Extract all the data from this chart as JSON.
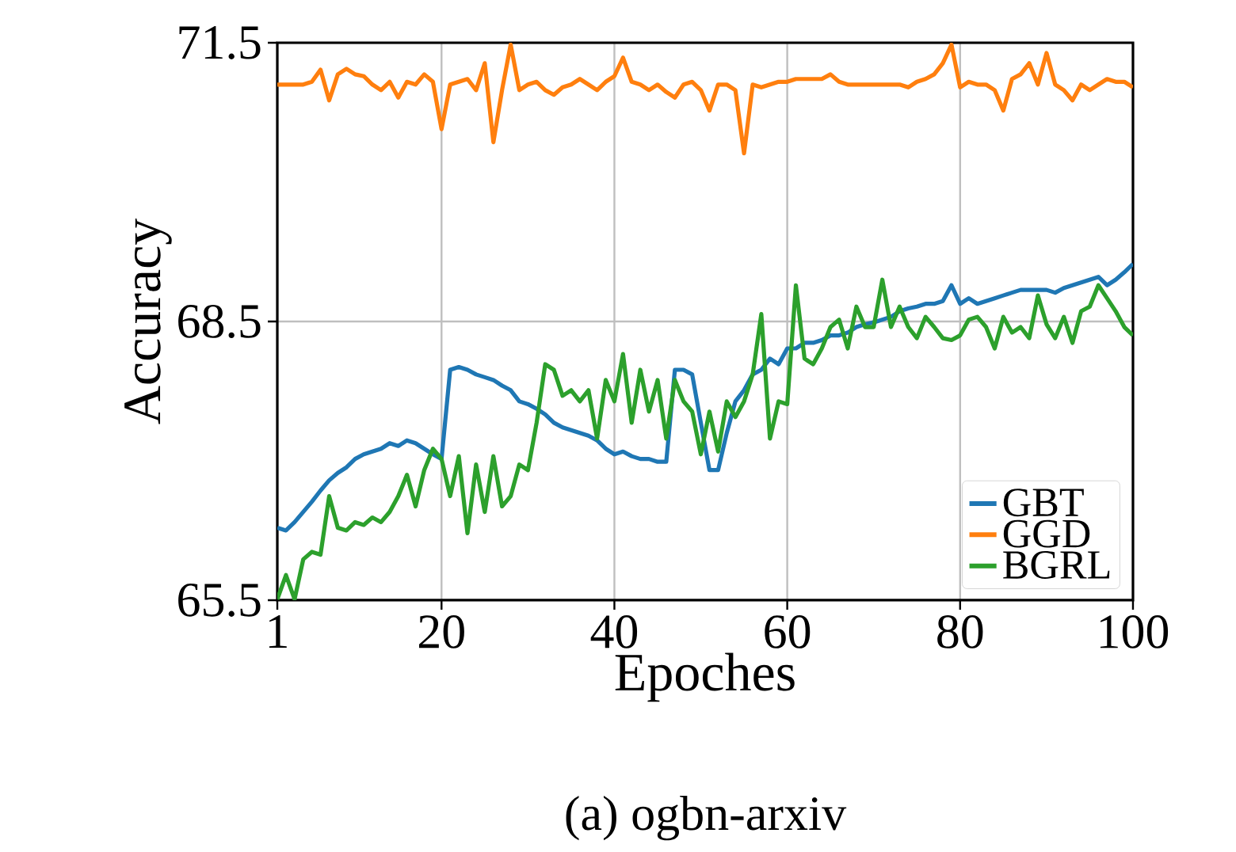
{
  "chart_data": {
    "type": "line",
    "title": "(a) ogbn-arxiv",
    "xlabel": "Epoches",
    "ylabel": "Accuracy",
    "x": [
      1,
      2,
      3,
      4,
      5,
      6,
      7,
      8,
      9,
      10,
      11,
      12,
      13,
      14,
      15,
      16,
      17,
      18,
      19,
      20,
      21,
      22,
      23,
      24,
      25,
      26,
      27,
      28,
      29,
      30,
      31,
      32,
      33,
      34,
      35,
      36,
      37,
      38,
      39,
      40,
      41,
      42,
      43,
      44,
      45,
      46,
      47,
      48,
      49,
      50,
      51,
      52,
      53,
      54,
      55,
      56,
      57,
      58,
      59,
      60,
      61,
      62,
      63,
      64,
      65,
      66,
      67,
      68,
      69,
      70,
      71,
      72,
      73,
      74,
      75,
      76,
      77,
      78,
      79,
      80,
      81,
      82,
      83,
      84,
      85,
      86,
      87,
      88,
      89,
      90,
      91,
      92,
      93,
      94,
      95,
      96,
      97,
      98,
      99,
      100
    ],
    "series": [
      {
        "name": "GBT",
        "color": "#1f77b4",
        "values": [
          66.28,
          66.25,
          66.34,
          66.45,
          66.56,
          66.68,
          66.79,
          66.87,
          66.93,
          67.02,
          67.07,
          67.1,
          67.13,
          67.19,
          67.16,
          67.22,
          67.19,
          67.13,
          67.07,
          67.02,
          67.98,
          68.01,
          67.98,
          67.93,
          67.9,
          67.87,
          67.81,
          67.76,
          67.64,
          67.61,
          67.56,
          67.5,
          67.41,
          67.36,
          67.33,
          67.3,
          67.27,
          67.22,
          67.13,
          67.07,
          67.1,
          67.05,
          67.02,
          67.02,
          66.99,
          66.99,
          67.98,
          67.98,
          67.93,
          67.41,
          66.9,
          66.9,
          67.3,
          67.64,
          67.76,
          67.93,
          67.98,
          68.1,
          68.04,
          68.21,
          68.21,
          68.27,
          68.27,
          68.3,
          68.35,
          68.35,
          68.38,
          68.44,
          68.47,
          68.49,
          68.52,
          68.55,
          68.61,
          68.64,
          68.66,
          68.69,
          68.69,
          68.72,
          68.89,
          68.69,
          68.75,
          68.69,
          68.72,
          68.75,
          68.78,
          68.81,
          68.84,
          68.84,
          68.84,
          68.84,
          68.81,
          68.86,
          68.89,
          68.92,
          68.95,
          68.98,
          68.89,
          68.95,
          69.03,
          69.12
        ]
      },
      {
        "name": "GGD",
        "color": "#ff7f0e",
        "values": [
          71.05,
          71.05,
          71.05,
          71.05,
          71.08,
          71.21,
          70.88,
          71.16,
          71.22,
          71.16,
          71.14,
          71.05,
          70.99,
          71.08,
          70.91,
          71.08,
          71.05,
          71.16,
          71.08,
          70.57,
          71.05,
          71.08,
          71.11,
          70.99,
          71.28,
          70.43,
          70.99,
          71.48,
          70.99,
          71.05,
          71.08,
          70.99,
          70.94,
          71.02,
          71.05,
          71.11,
          71.05,
          70.99,
          71.08,
          71.14,
          71.34,
          71.08,
          71.05,
          70.99,
          71.05,
          70.97,
          70.91,
          71.05,
          71.08,
          70.99,
          70.77,
          71.05,
          71.05,
          70.99,
          70.31,
          71.05,
          71.02,
          71.05,
          71.08,
          71.08,
          71.11,
          71.11,
          71.11,
          71.11,
          71.16,
          71.08,
          71.05,
          71.05,
          71.05,
          71.05,
          71.05,
          71.05,
          71.05,
          71.02,
          71.08,
          71.11,
          71.16,
          71.28,
          71.48,
          71.02,
          71.08,
          71.05,
          71.05,
          70.99,
          70.77,
          71.11,
          71.16,
          71.28,
          71.05,
          71.39,
          71.05,
          70.99,
          70.88,
          71.05,
          70.99,
          71.05,
          71.11,
          71.08,
          71.08,
          71.02
        ]
      },
      {
        "name": "BGRL",
        "color": "#2ca02c",
        "values": [
          65.51,
          65.77,
          65.51,
          65.94,
          66.02,
          65.99,
          66.62,
          66.28,
          66.25,
          66.34,
          66.31,
          66.39,
          66.34,
          66.45,
          66.62,
          66.85,
          66.51,
          66.9,
          67.13,
          67.02,
          66.62,
          67.05,
          66.22,
          66.96,
          66.45,
          67.05,
          66.51,
          66.62,
          66.96,
          66.9,
          67.41,
          68.04,
          67.98,
          67.7,
          67.76,
          67.64,
          67.76,
          67.24,
          67.87,
          67.64,
          68.15,
          67.41,
          67.98,
          67.53,
          67.87,
          67.24,
          67.87,
          67.64,
          67.53,
          67.07,
          67.53,
          67.1,
          67.64,
          67.47,
          67.64,
          67.93,
          68.58,
          67.24,
          67.64,
          67.61,
          68.89,
          68.1,
          68.04,
          68.21,
          68.44,
          68.52,
          68.21,
          68.66,
          68.44,
          68.44,
          68.95,
          68.44,
          68.66,
          68.44,
          68.32,
          68.55,
          68.44,
          68.32,
          68.3,
          68.35,
          68.52,
          68.55,
          68.44,
          68.21,
          68.55,
          68.38,
          68.44,
          68.32,
          68.78,
          68.47,
          68.32,
          68.55,
          68.27,
          68.61,
          68.66,
          68.89,
          68.75,
          68.61,
          68.44,
          68.35
        ]
      }
    ],
    "xlim": [
      1,
      100
    ],
    "ylim": [
      65.5,
      71.5
    ],
    "xticks": [
      1,
      20,
      40,
      60,
      80,
      100
    ],
    "yticks": [
      65.5,
      68.5,
      71.5
    ],
    "grid": true,
    "legend": "bottom right",
    "marker": "none",
    "line_style": "solid"
  }
}
